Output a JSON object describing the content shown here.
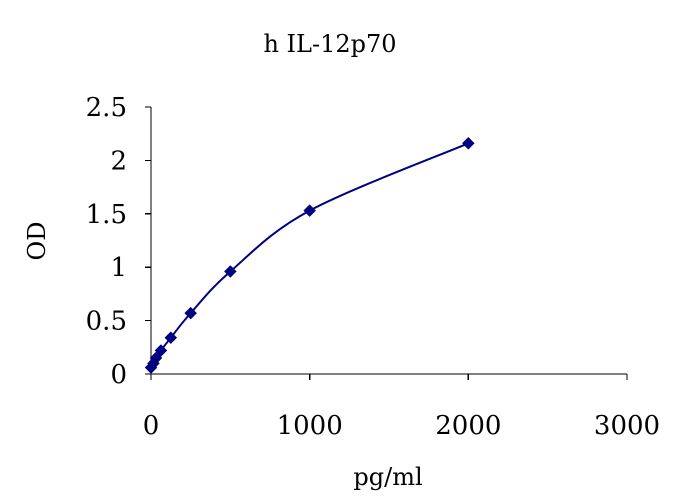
{
  "chart_data": {
    "type": "scatter",
    "title": "h IL-12p70",
    "xlabel": "pg/ml",
    "ylabel": "OD",
    "xlim": [
      0,
      3000
    ],
    "ylim": [
      0,
      2.5
    ],
    "xticks": [
      0,
      1000,
      2000,
      3000
    ],
    "yticks": [
      0,
      0.5,
      1,
      1.5,
      2,
      2.5
    ],
    "xtick_labels": [
      "0",
      "1000",
      "2000",
      "3000"
    ],
    "ytick_labels": [
      "0",
      "0.5",
      "1",
      "1.5",
      "2",
      "2.5"
    ],
    "grid": false,
    "legend": "none",
    "trendline": "smooth",
    "series": [
      {
        "x": [
          0,
          15.6,
          31.25,
          62.5,
          125,
          250,
          500,
          1000,
          2000
        ],
        "y": [
          0.06,
          0.1,
          0.15,
          0.22,
          0.34,
          0.57,
          0.96,
          1.53,
          2.16
        ],
        "color": "#000080",
        "marker": "diamond"
      }
    ]
  }
}
